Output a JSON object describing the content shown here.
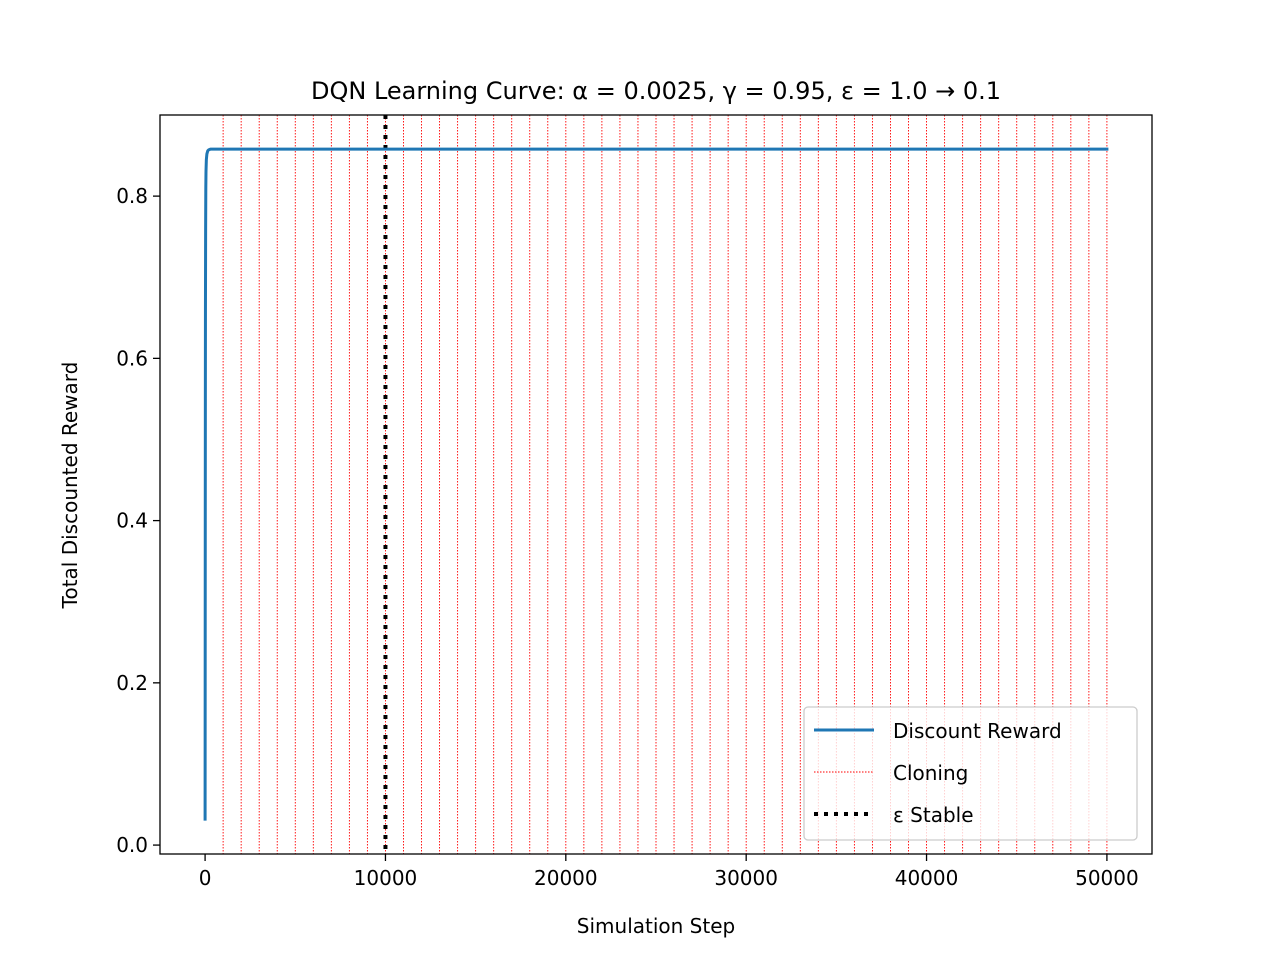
{
  "chart_data": {
    "type": "line",
    "title": "DQN Learning Curve: α = 0.0025, γ = 0.95, ε = 1.0 → 0.1",
    "xlabel": "Simulation Step",
    "ylabel": "Total Discounted Reward",
    "xlim": [
      -2500,
      52500
    ],
    "ylim": [
      -0.011,
      0.9
    ],
    "xticks": [
      0,
      10000,
      20000,
      30000,
      40000,
      50000
    ],
    "yticks": [
      0.0,
      0.2,
      0.4,
      0.6,
      0.8
    ],
    "xtick_labels": [
      "0",
      "10000",
      "20000",
      "30000",
      "40000",
      "50000"
    ],
    "ytick_labels": [
      "0.0",
      "0.2",
      "0.4",
      "0.6",
      "0.8"
    ],
    "grid": false,
    "legend_position": "bottom-right",
    "series": [
      {
        "name": "Discount Reward",
        "color": "#1f77b4",
        "x": [
          0,
          5,
          10,
          15,
          20,
          30,
          40,
          50,
          70,
          100,
          150,
          200,
          300,
          500,
          1000,
          5000,
          10000,
          20000,
          30000,
          40000,
          50000
        ],
        "y": [
          0.032,
          0.2,
          0.4,
          0.55,
          0.66,
          0.76,
          0.81,
          0.83,
          0.845,
          0.852,
          0.856,
          0.857,
          0.858,
          0.858,
          0.858,
          0.858,
          0.858,
          0.858,
          0.858,
          0.858,
          0.858
        ]
      }
    ],
    "cloning": {
      "name": "Cloning",
      "color": "#ff0000",
      "x": [
        1000,
        2000,
        3000,
        4000,
        5000,
        6000,
        7000,
        8000,
        9000,
        10000,
        11000,
        12000,
        13000,
        14000,
        15000,
        16000,
        17000,
        18000,
        19000,
        20000,
        21000,
        22000,
        23000,
        24000,
        25000,
        26000,
        27000,
        28000,
        29000,
        30000,
        31000,
        32000,
        33000,
        34000,
        35000,
        36000,
        37000,
        38000,
        39000,
        40000,
        41000,
        42000,
        43000,
        44000,
        45000,
        46000,
        47000,
        48000,
        49000,
        50000
      ]
    },
    "epsilon_stable": {
      "name": "ε Stable",
      "color": "#000000",
      "x": 10000
    }
  }
}
